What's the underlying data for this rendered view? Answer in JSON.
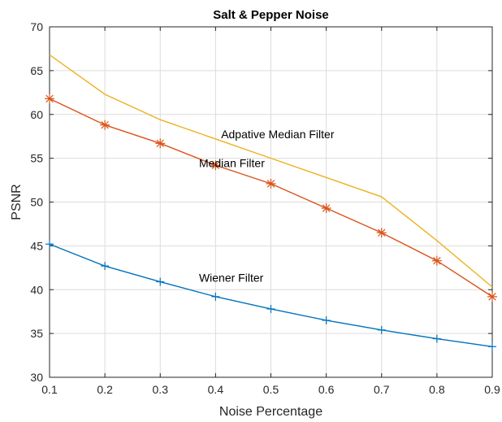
{
  "chart_data": {
    "type": "line",
    "title": "Salt & Pepper Noise",
    "xlabel": "Noise Percentage",
    "ylabel": "PSNR",
    "xlim": [
      0.1,
      0.9
    ],
    "ylim": [
      30,
      70
    ],
    "xticks": [
      "0.1",
      "0.2",
      "0.3",
      "0.4",
      "0.5",
      "0.6",
      "0.7",
      "0.8",
      "0.9"
    ],
    "yticks": [
      "30",
      "35",
      "40",
      "45",
      "50",
      "55",
      "60",
      "65",
      "70"
    ],
    "grid": true,
    "x": [
      0.1,
      0.2,
      0.3,
      0.4,
      0.5,
      0.6,
      0.7,
      0.8,
      0.9
    ],
    "series": [
      {
        "name": "Wiener Filter",
        "color": "#0072BD",
        "marker": "plus",
        "values": [
          45.2,
          42.7,
          40.9,
          39.2,
          37.8,
          36.5,
          35.4,
          34.4,
          33.5
        ]
      },
      {
        "name": "Median Filter",
        "color": "#D95319",
        "marker": "asterisk",
        "values": [
          61.8,
          58.8,
          56.7,
          54.2,
          52.1,
          49.3,
          46.5,
          43.3,
          39.2
        ]
      },
      {
        "name": "Adpative Median Filter",
        "color": "#EDB120",
        "marker": "none",
        "values": [
          66.8,
          62.3,
          59.4,
          57.2,
          55.0,
          52.8,
          50.6,
          45.6,
          40.3
        ]
      }
    ],
    "annotations": [
      {
        "text": "Adpative Median Filter",
        "x": 0.41,
        "y": 57.3
      },
      {
        "text": "Median Filter",
        "x": 0.37,
        "y": 54.0
      },
      {
        "text": "Wiener Filter",
        "x": 0.37,
        "y": 40.9
      }
    ]
  }
}
